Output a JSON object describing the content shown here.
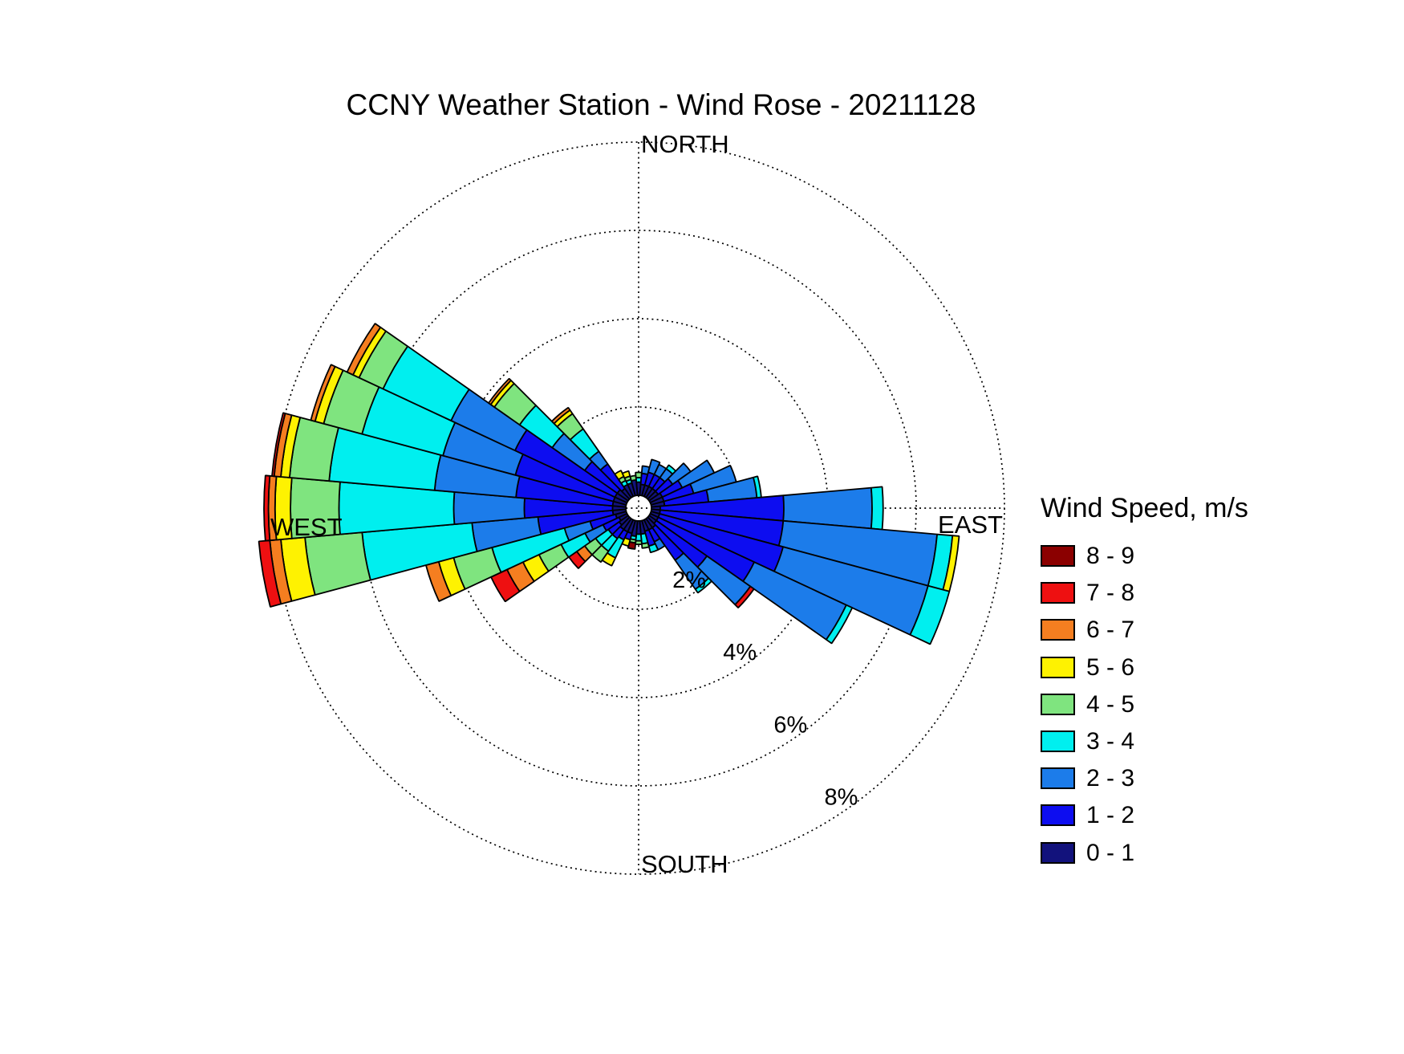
{
  "title": "CCNY Weather Station - Wind Rose - 20211128",
  "legend": {
    "title": "Wind Speed, m/s"
  },
  "chart_data": {
    "type": "windrose",
    "title": "CCNY Weather Station - Wind Rose - 20211128",
    "units": "m/s",
    "legend_title": "Wind Speed, m/s",
    "legend_position": "right",
    "grid": "dotted",
    "axis_labels": {
      "north": "NORTH",
      "east": "EAST",
      "south": "SOUTH",
      "west": "WEST"
    },
    "ring_ticks": [
      {
        "pct": 2,
        "label": "2%"
      },
      {
        "pct": 4,
        "label": "4%"
      },
      {
        "pct": 6,
        "label": "6%"
      },
      {
        "pct": 8,
        "label": "8%"
      }
    ],
    "radial_range_pct": [
      0,
      8
    ],
    "sector_width_deg": 10,
    "speed_bins": [
      {
        "id": "8-9",
        "range": "8 - 9",
        "color": "#8B0000"
      },
      {
        "id": "7-8",
        "range": "7 - 8",
        "color": "#EE1011"
      },
      {
        "id": "6-7",
        "range": "6 - 7",
        "color": "#F57E20"
      },
      {
        "id": "5-6",
        "range": "5 - 6",
        "color": "#FEF201"
      },
      {
        "id": "4-5",
        "range": "4 - 5",
        "color": "#7FE47F"
      },
      {
        "id": "3-4",
        "range": "3 - 4",
        "color": "#00EFEF"
      },
      {
        "id": "2-3",
        "range": "2 - 3",
        "color": "#1C7CEA"
      },
      {
        "id": "1-2",
        "range": "1 - 2",
        "color": "#0D0DF0"
      },
      {
        "id": "0-1",
        "range": "0 - 1",
        "color": "#12127C"
      }
    ],
    "sectors": [
      {
        "dir_deg": 0,
        "stack": [
          [
            "0-1",
            0.3
          ],
          [
            "3-4",
            0.1
          ],
          [
            "4-5",
            0.12
          ]
        ]
      },
      {
        "dir_deg": 10,
        "stack": [
          [
            "0-1",
            0.25
          ],
          [
            "1-2",
            0.25
          ],
          [
            "2-3",
            0.17
          ]
        ]
      },
      {
        "dir_deg": 20,
        "stack": [
          [
            "0-1",
            0.25
          ],
          [
            "1-2",
            0.3
          ],
          [
            "2-3",
            0.3
          ]
        ]
      },
      {
        "dir_deg": 30,
        "stack": [
          [
            "0-1",
            0.25
          ],
          [
            "1-2",
            0.3
          ],
          [
            "2-3",
            0.25
          ]
        ]
      },
      {
        "dir_deg": 40,
        "stack": [
          [
            "0-1",
            0.25
          ],
          [
            "1-2",
            0.3
          ],
          [
            "2-3",
            0.25
          ],
          [
            "3-4",
            0.1
          ]
        ]
      },
      {
        "dir_deg": 50,
        "stack": [
          [
            "0-1",
            0.25
          ],
          [
            "1-2",
            0.4
          ],
          [
            "2-3",
            0.5
          ]
        ]
      },
      {
        "dir_deg": 60,
        "stack": [
          [
            "0-1",
            0.3
          ],
          [
            "1-2",
            0.5
          ],
          [
            "2-3",
            0.8
          ]
        ]
      },
      {
        "dir_deg": 70,
        "stack": [
          [
            "0-1",
            0.3
          ],
          [
            "1-2",
            0.7
          ],
          [
            "2-3",
            1.0
          ]
        ]
      },
      {
        "dir_deg": 80,
        "stack": [
          [
            "0-1",
            0.3
          ],
          [
            "1-2",
            1.0
          ],
          [
            "2-3",
            1.1
          ],
          [
            "3-4",
            0.1
          ]
        ]
      },
      {
        "dir_deg": 90,
        "stack": [
          [
            "0-1",
            0.2
          ],
          [
            "1-2",
            2.8
          ],
          [
            "2-3",
            2.0
          ],
          [
            "3-4",
            0.25
          ]
        ]
      },
      {
        "dir_deg": 100,
        "stack": [
          [
            "0-1",
            0.2
          ],
          [
            "1-2",
            2.8
          ],
          [
            "2-3",
            3.5
          ],
          [
            "3-4",
            0.35
          ],
          [
            "5-6",
            0.15
          ]
        ]
      },
      {
        "dir_deg": 110,
        "stack": [
          [
            "0-1",
            0.2
          ],
          [
            "1-2",
            2.9
          ],
          [
            "2-3",
            3.4
          ],
          [
            "3-4",
            0.5
          ]
        ]
      },
      {
        "dir_deg": 120,
        "stack": [
          [
            "0-1",
            0.2
          ],
          [
            "1-2",
            2.4
          ],
          [
            "2-3",
            2.3
          ],
          [
            "3-4",
            0.15
          ]
        ]
      },
      {
        "dir_deg": 130,
        "stack": [
          [
            "0-1",
            0.2
          ],
          [
            "1-2",
            1.4
          ],
          [
            "2-3",
            1.2
          ],
          [
            "7-8",
            0.1
          ]
        ]
      },
      {
        "dir_deg": 140,
        "stack": [
          [
            "0-1",
            0.25
          ],
          [
            "1-2",
            0.9
          ],
          [
            "2-3",
            0.8
          ],
          [
            "3-4",
            0.1
          ]
        ]
      },
      {
        "dir_deg": 150,
        "stack": [
          [
            "0-1",
            0.25
          ],
          [
            "1-2",
            0.3
          ],
          [
            "2-3",
            0.2
          ]
        ]
      },
      {
        "dir_deg": 160,
        "stack": [
          [
            "0-1",
            0.25
          ],
          [
            "1-2",
            0.35
          ],
          [
            "3-4",
            0.15
          ]
        ]
      },
      {
        "dir_deg": 170,
        "stack": [
          [
            "0-1",
            0.3
          ],
          [
            "3-4",
            0.22
          ],
          [
            "4-5",
            0.1
          ]
        ]
      },
      {
        "dir_deg": 180,
        "stack": [
          [
            "0-1",
            0.3
          ],
          [
            "3-4",
            0.15
          ],
          [
            "4-5",
            0.08
          ]
        ]
      },
      {
        "dir_deg": 190,
        "stack": [
          [
            "0-1",
            0.35
          ],
          [
            "3-4",
            0.08
          ],
          [
            "4-5",
            0.07
          ],
          [
            "8-9",
            0.14
          ]
        ]
      },
      {
        "dir_deg": 200,
        "stack": [
          [
            "0-1",
            0.3
          ],
          [
            "1-2",
            0.15
          ],
          [
            "5-6",
            0.15
          ]
        ]
      },
      {
        "dir_deg": 210,
        "stack": [
          [
            "0-1",
            0.3
          ],
          [
            "1-2",
            0.2
          ],
          [
            "3-4",
            0.45
          ],
          [
            "5-6",
            0.2
          ]
        ]
      },
      {
        "dir_deg": 220,
        "stack": [
          [
            "0-1",
            0.3
          ],
          [
            "1-2",
            0.25
          ],
          [
            "3-4",
            0.35
          ],
          [
            "4-5",
            0.3
          ]
        ]
      },
      {
        "dir_deg": 230,
        "stack": [
          [
            "0-1",
            0.25
          ],
          [
            "1-2",
            0.3
          ],
          [
            "3-4",
            0.35
          ],
          [
            "4-5",
            0.3
          ],
          [
            "6-7",
            0.22
          ],
          [
            "7-8",
            0.22
          ]
        ]
      },
      {
        "dir_deg": 240,
        "stack": [
          [
            "0-1",
            0.2
          ],
          [
            "1-2",
            0.4
          ],
          [
            "2-3",
            0.45
          ],
          [
            "3-4",
            0.6
          ],
          [
            "4-5",
            0.55
          ],
          [
            "5-6",
            0.4
          ],
          [
            "6-7",
            0.4
          ],
          [
            "7-8",
            0.4
          ]
        ]
      },
      {
        "dir_deg": 250,
        "stack": [
          [
            "0-1",
            0.25
          ],
          [
            "1-2",
            0.6
          ],
          [
            "2-3",
            0.6
          ],
          [
            "3-4",
            1.7
          ],
          [
            "4-5",
            0.9
          ],
          [
            "5-6",
            0.35
          ],
          [
            "6-7",
            0.3
          ]
        ]
      },
      {
        "dir_deg": 260,
        "stack": [
          [
            "0-1",
            0.3
          ],
          [
            "1-2",
            1.7
          ],
          [
            "2-3",
            1.5
          ],
          [
            "3-4",
            2.5
          ],
          [
            "4-5",
            1.3
          ],
          [
            "5-6",
            0.55
          ],
          [
            "6-7",
            0.25
          ],
          [
            "7-8",
            0.25
          ]
        ]
      },
      {
        "dir_deg": 270,
        "stack": [
          [
            "0-1",
            0.3
          ],
          [
            "1-2",
            2.0
          ],
          [
            "2-3",
            1.6
          ],
          [
            "3-4",
            2.6
          ],
          [
            "4-5",
            1.1
          ],
          [
            "5-6",
            0.35
          ],
          [
            "6-7",
            0.15
          ],
          [
            "7-8",
            0.1
          ]
        ]
      },
      {
        "dir_deg": 280,
        "stack": [
          [
            "0-1",
            0.3
          ],
          [
            "1-2",
            2.2
          ],
          [
            "2-3",
            1.85
          ],
          [
            "3-4",
            2.4
          ],
          [
            "4-5",
            0.9
          ],
          [
            "5-6",
            0.2
          ],
          [
            "6-7",
            0.15
          ],
          [
            "7-8",
            0.05
          ]
        ]
      },
      {
        "dir_deg": 290,
        "stack": [
          [
            "0-1",
            0.3
          ],
          [
            "1-2",
            2.3
          ],
          [
            "2-3",
            1.7
          ],
          [
            "3-4",
            1.9
          ],
          [
            "4-5",
            0.9
          ],
          [
            "5-6",
            0.2
          ],
          [
            "6-7",
            0.1
          ]
        ]
      },
      {
        "dir_deg": 300,
        "stack": [
          [
            "0-1",
            0.3
          ],
          [
            "1-2",
            2.5
          ],
          [
            "2-3",
            1.6
          ],
          [
            "3-4",
            1.7
          ],
          [
            "4-5",
            0.6
          ],
          [
            "5-6",
            0.15
          ],
          [
            "6-7",
            0.15
          ]
        ]
      },
      {
        "dir_deg": 310,
        "stack": [
          [
            "0-1",
            0.3
          ],
          [
            "1-2",
            0.9
          ],
          [
            "2-3",
            0.9
          ],
          [
            "3-4",
            0.9
          ],
          [
            "4-5",
            0.7
          ],
          [
            "5-6",
            0.1
          ],
          [
            "6-7",
            0.06
          ]
        ]
      },
      {
        "dir_deg": 320,
        "stack": [
          [
            "0-1",
            0.25
          ],
          [
            "1-2",
            0.68
          ],
          [
            "2-3",
            0.35
          ],
          [
            "3-4",
            0.62
          ],
          [
            "4-5",
            0.42
          ],
          [
            "5-6",
            0.1
          ],
          [
            "6-7",
            0.07
          ]
        ]
      },
      {
        "dir_deg": 330,
        "stack": [
          [
            "0-1",
            0.3
          ],
          [
            "3-4",
            0.1
          ],
          [
            "4-5",
            0.1
          ],
          [
            "5-6",
            0.15
          ]
        ]
      },
      {
        "dir_deg": 340,
        "stack": [
          [
            "0-1",
            0.3
          ],
          [
            "3-4",
            0.08
          ],
          [
            "4-5",
            0.08
          ],
          [
            "5-6",
            0.12
          ]
        ]
      },
      {
        "dir_deg": 350,
        "stack": [
          [
            "0-1",
            0.35
          ],
          [
            "4-5",
            0.1
          ]
        ]
      }
    ]
  }
}
